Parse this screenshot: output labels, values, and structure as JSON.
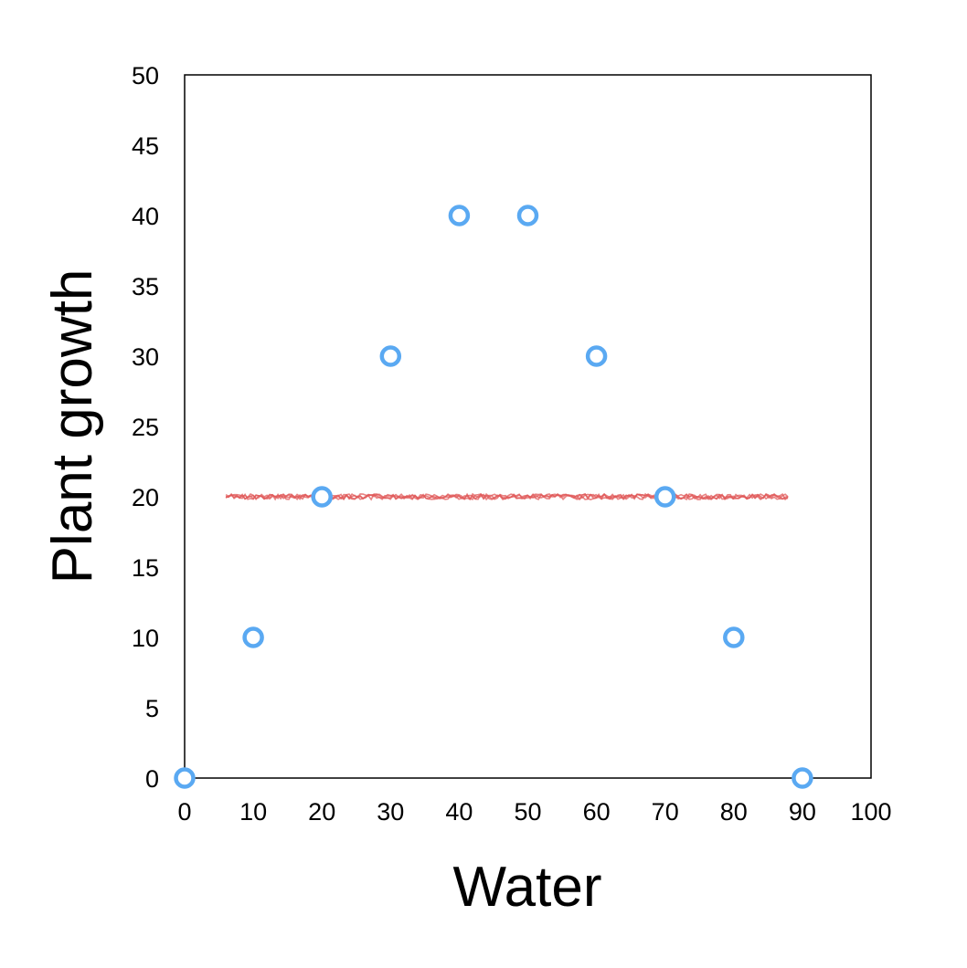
{
  "chart_data": {
    "type": "scatter",
    "title": "",
    "xlabel": "Water",
    "ylabel": "Plant growth",
    "xlim": [
      0,
      100
    ],
    "ylim": [
      0,
      50
    ],
    "xticks": [
      "0",
      "10",
      "20",
      "30",
      "40",
      "50",
      "60",
      "70",
      "80",
      "90",
      "100"
    ],
    "yticks": [
      "0",
      "5",
      "10",
      "15",
      "20",
      "25",
      "30",
      "35",
      "40",
      "45",
      "50"
    ],
    "grid": false,
    "legend": "none",
    "series": [
      {
        "marker": "open-circle",
        "color": "#5AA9F2",
        "x": [
          0,
          10,
          20,
          30,
          40,
          50,
          60,
          70,
          80,
          90
        ],
        "y": [
          0,
          10,
          20,
          30,
          40,
          40,
          30,
          20,
          10,
          0
        ]
      }
    ],
    "trendline": {
      "style": "rough-horizontal",
      "color": "#E05A5A",
      "x": [
        6,
        88
      ],
      "y": [
        20,
        20
      ]
    }
  }
}
